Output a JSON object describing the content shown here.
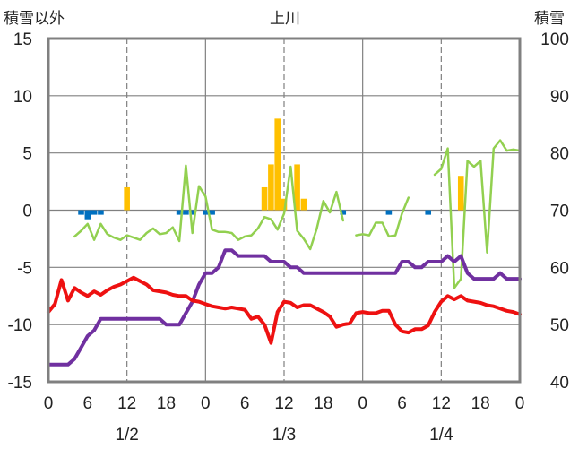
{
  "chart_data": {
    "type": "line",
    "title": "上川",
    "left_axis_label": "積雪以外",
    "right_axis_label": "積雪",
    "left_ylim": [
      -15,
      15
    ],
    "left_yticks": [
      15,
      10,
      5,
      0,
      -5,
      -10,
      -15
    ],
    "right_ylim": [
      40,
      100
    ],
    "right_yticks": [
      100,
      90,
      80,
      70,
      60,
      50,
      40
    ],
    "xlim": [
      0,
      72
    ],
    "x_ticks": [
      {
        "x": 0,
        "label": "0"
      },
      {
        "x": 6,
        "label": "6"
      },
      {
        "x": 12,
        "label": "12"
      },
      {
        "x": 18,
        "label": "18"
      },
      {
        "x": 24,
        "label": "0"
      },
      {
        "x": 30,
        "label": "6"
      },
      {
        "x": 36,
        "label": "12"
      },
      {
        "x": 42,
        "label": "18"
      },
      {
        "x": 48,
        "label": "0"
      },
      {
        "x": 54,
        "label": "6"
      },
      {
        "x": 60,
        "label": "12"
      },
      {
        "x": 66,
        "label": "18"
      },
      {
        "x": 72,
        "label": "0"
      }
    ],
    "date_labels": [
      {
        "x": 12,
        "label": "1/2"
      },
      {
        "x": 36,
        "label": "1/3"
      },
      {
        "x": 60,
        "label": "1/4"
      }
    ],
    "grid": {
      "horizontal_solid": true,
      "dashed_midday": [
        12,
        36,
        60
      ],
      "solid_midnight": [
        24,
        48
      ]
    },
    "colors": {
      "temperature": "#ee1111",
      "snow_depth": "#7030a0",
      "precipitation": "#ffc000",
      "snow_change": "#0070c0",
      "humidity": "#92d050",
      "grid": "#808080",
      "frame": "#808080"
    },
    "series": [
      {
        "key": "temperature",
        "axis": "left",
        "x": [
          0,
          1,
          2,
          3,
          4,
          5,
          6,
          7,
          8,
          9,
          10,
          11,
          12,
          13,
          14,
          15,
          16,
          17,
          18,
          19,
          20,
          21,
          22,
          23,
          24,
          25,
          26,
          27,
          28,
          29,
          30,
          31,
          32,
          33,
          34,
          35,
          36,
          37,
          38,
          39,
          40,
          41,
          42,
          43,
          44,
          45,
          46,
          47,
          48,
          49,
          50,
          51,
          52,
          53,
          54,
          55,
          56,
          57,
          58,
          59,
          60,
          61,
          62,
          63,
          64,
          65,
          66,
          67,
          68,
          69,
          70,
          71,
          72
        ],
        "y": [
          -8.9,
          -8.2,
          -6.1,
          -7.9,
          -6.8,
          -7.2,
          -7.5,
          -7.1,
          -7.4,
          -7.0,
          -6.7,
          -6.5,
          -6.2,
          -5.9,
          -6.2,
          -6.5,
          -7.0,
          -7.1,
          -7.2,
          -7.4,
          -7.5,
          -7.5,
          -7.9,
          -8.0,
          -8.2,
          -8.4,
          -8.5,
          -8.6,
          -8.5,
          -8.6,
          -8.7,
          -9.5,
          -9.3,
          -10.0,
          -11.6,
          -8.9,
          -8.0,
          -8.1,
          -8.5,
          -8.3,
          -8.3,
          -8.6,
          -8.9,
          -9.3,
          -10.2,
          -10.0,
          -9.9,
          -9.0,
          -8.9,
          -9.0,
          -9.0,
          -8.8,
          -8.8,
          -10.0,
          -10.6,
          -10.7,
          -10.4,
          -10.4,
          -10.1,
          -8.9,
          -8.0,
          -7.5,
          -7.8,
          -7.5,
          -7.9,
          -8.0,
          -8.1,
          -8.3,
          -8.4,
          -8.6,
          -8.8,
          -8.9,
          -9.1
        ]
      },
      {
        "key": "snow_depth",
        "axis": "right",
        "x": [
          0,
          3,
          4,
          5,
          6,
          7,
          8,
          9,
          10,
          11,
          12,
          13,
          14,
          15,
          16,
          17,
          18,
          19,
          20,
          21,
          22,
          23,
          24,
          25,
          26,
          27,
          28,
          29,
          30,
          31,
          32,
          33,
          34,
          35,
          36,
          37,
          38,
          39,
          40,
          41,
          42,
          43,
          44,
          45,
          46,
          47,
          48,
          49,
          50,
          51,
          52,
          53,
          54,
          55,
          56,
          57,
          58,
          59,
          60,
          61,
          62,
          63,
          64,
          65,
          66,
          67,
          68,
          69,
          70,
          71,
          72
        ],
        "y": [
          43,
          43,
          44,
          46,
          48,
          49,
          51,
          51,
          51,
          51,
          51,
          51,
          51,
          51,
          51,
          51,
          50,
          50,
          50,
          52,
          54,
          57,
          59,
          59,
          60,
          63,
          63,
          62,
          62,
          62,
          62,
          62,
          61,
          61,
          61,
          60,
          60,
          59,
          59,
          59,
          59,
          59,
          59,
          59,
          59,
          59,
          59,
          59,
          59,
          59,
          59,
          59,
          61,
          61,
          60,
          60,
          61,
          61,
          61,
          62,
          61,
          62,
          59,
          58,
          58,
          58,
          58,
          59,
          58,
          58,
          58
        ]
      },
      {
        "key": "humidity",
        "axis": "left",
        "segments": [
          {
            "x": [
              4,
              5,
              6,
              7,
              8,
              9,
              10,
              11,
              12,
              13,
              14,
              15,
              16,
              17,
              18,
              19,
              20,
              21,
              22,
              23,
              24,
              25,
              26,
              27,
              28,
              29,
              30,
              31,
              32,
              33,
              34,
              35,
              36,
              37,
              38,
              39,
              40,
              41,
              42,
              43,
              44,
              45
            ],
            "y": [
              -2.3,
              -1.8,
              -1.2,
              -2.6,
              -1.2,
              -2.1,
              -2.4,
              -2.6,
              -2.2,
              -2.4,
              -2.6,
              -2.0,
              -1.6,
              -2.1,
              -2.0,
              -1.5,
              -2.7,
              3.9,
              -2.0,
              2.1,
              1.2,
              -1.7,
              -1.9,
              -1.9,
              -2.0,
              -2.6,
              -2.3,
              -2.2,
              -1.6,
              -0.6,
              -0.8,
              -1.7,
              -0.3,
              3.8,
              -1.8,
              -2.5,
              -3.4,
              -1.6,
              0.8,
              -0.2,
              1.6,
              -0.9
            ]
          },
          {
            "x": [
              47,
              48,
              49,
              50,
              51,
              52,
              53,
              54,
              55
            ],
            "y": [
              -2.2,
              -2.1,
              -2.2,
              -1.1,
              -1.1,
              -2.3,
              -2.2,
              -0.3,
              1.1
            ]
          },
          {
            "x": [
              59,
              60,
              61,
              62,
              63,
              64,
              65,
              66,
              67,
              68,
              69,
              70,
              71,
              72
            ],
            "y": [
              3.1,
              3.6,
              5.4,
              -6.8,
              -6.0,
              4.3,
              3.8,
              4.3,
              -3.7,
              5.4,
              6.1,
              5.2,
              5.3,
              5.2
            ]
          }
        ]
      }
    ],
    "bars_precipitation": {
      "axis": "left",
      "x": [
        12,
        33,
        34,
        35,
        36,
        38,
        39,
        63
      ],
      "values": [
        2.0,
        2.0,
        4.0,
        8.0,
        1.0,
        4.0,
        1.0,
        3.0
      ]
    },
    "bars_snow_change": {
      "axis": "left",
      "x": [
        5,
        6,
        7,
        8,
        20,
        21,
        22,
        24,
        25,
        45,
        52,
        58
      ],
      "values": [
        -0.4,
        -0.8,
        -0.4,
        -0.4,
        -0.4,
        -0.4,
        -0.4,
        -0.4,
        -0.4,
        -0.4,
        -0.4,
        -0.4
      ]
    }
  }
}
